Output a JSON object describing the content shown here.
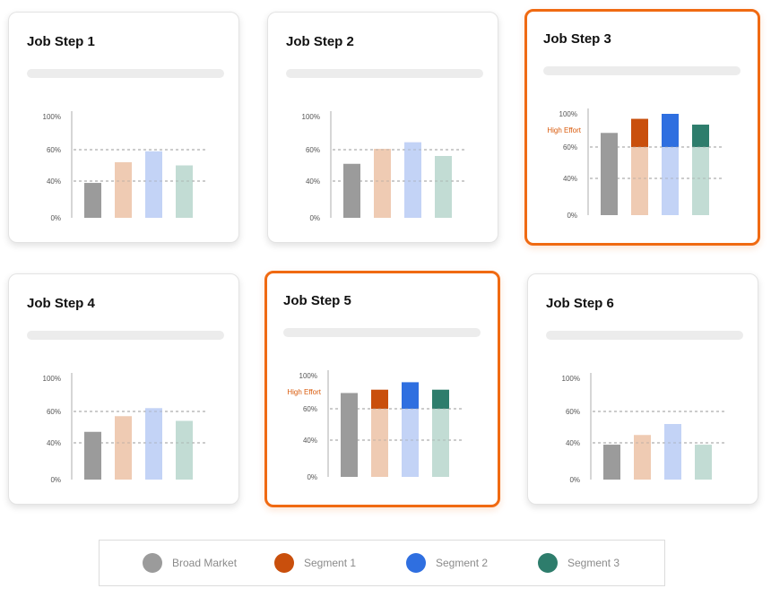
{
  "colors": {
    "broad_market": "#9b9b9b",
    "segment_1": "#c94f0c",
    "segment_2": "#2f6fe0",
    "segment_3": "#2e7d6c",
    "segment_1_light": "#efcbb3",
    "segment_2_light": "#c3d3f6",
    "segment_3_light": "#c2dcd4",
    "highlight_border": "#f06a12",
    "high_effort_text": "#d95a0b"
  },
  "legend": [
    {
      "label": "Broad Market",
      "color": "#9b9b9b"
    },
    {
      "label": "Segment 1",
      "color": "#c94f0c"
    },
    {
      "label": "Segment 2",
      "color": "#2f6fe0"
    },
    {
      "label": "Segment 3",
      "color": "#2e7d6c"
    }
  ],
  "chart_data": [
    {
      "type": "bar",
      "title": "Job Step 1",
      "categories": [
        "Broad Market",
        "Segment 1",
        "Segment 2",
        "Segment 3"
      ],
      "values": [
        38,
        52,
        59,
        50
      ],
      "yticks": [
        "100%",
        "60%",
        "40%",
        "0%"
      ],
      "reference_lines": [
        60,
        40
      ],
      "highlighted": false,
      "high_effort_label": ""
    },
    {
      "type": "bar",
      "title": "Job Step 2",
      "categories": [
        "Broad Market",
        "Segment 1",
        "Segment 2",
        "Segment 3"
      ],
      "values": [
        51,
        61,
        69,
        56
      ],
      "yticks": [
        "100%",
        "60%",
        "40%",
        "0%"
      ],
      "reference_lines": [
        60,
        40
      ],
      "highlighted": false,
      "high_effort_label": ""
    },
    {
      "type": "bar",
      "title": "Job Step 3",
      "categories": [
        "Broad Market",
        "Segment 1",
        "Segment 2",
        "Segment 3"
      ],
      "values": [
        77,
        94,
        100,
        87
      ],
      "yticks": [
        "100%",
        "60%",
        "40%",
        "0%"
      ],
      "reference_lines": [
        60,
        40
      ],
      "highlighted": true,
      "high_effort_label": "High Effort",
      "high_effort_threshold": 60
    },
    {
      "type": "bar",
      "title": "Job Step 4",
      "categories": [
        "Broad Market",
        "Segment 1",
        "Segment 2",
        "Segment 3"
      ],
      "values": [
        47,
        57,
        64,
        54
      ],
      "yticks": [
        "100%",
        "60%",
        "40%",
        "0%"
      ],
      "reference_lines": [
        60,
        40
      ],
      "highlighted": false,
      "high_effort_label": ""
    },
    {
      "type": "bar",
      "title": "Job Step 5",
      "categories": [
        "Broad Market",
        "Segment 1",
        "Segment 2",
        "Segment 3"
      ],
      "values": [
        79,
        83,
        92,
        83
      ],
      "yticks": [
        "100%",
        "60%",
        "40%",
        "0%"
      ],
      "reference_lines": [
        60,
        40
      ],
      "highlighted": true,
      "high_effort_label": "High Effort",
      "high_effort_threshold": 60
    },
    {
      "type": "bar",
      "title": "Job Step 6",
      "categories": [
        "Broad Market",
        "Segment 1",
        "Segment 2",
        "Segment 3"
      ],
      "values": [
        38,
        45,
        52,
        38
      ],
      "yticks": [
        "100%",
        "60%",
        "40%",
        "0%"
      ],
      "reference_lines": [
        60,
        40
      ],
      "highlighted": false,
      "high_effort_label": ""
    }
  ]
}
